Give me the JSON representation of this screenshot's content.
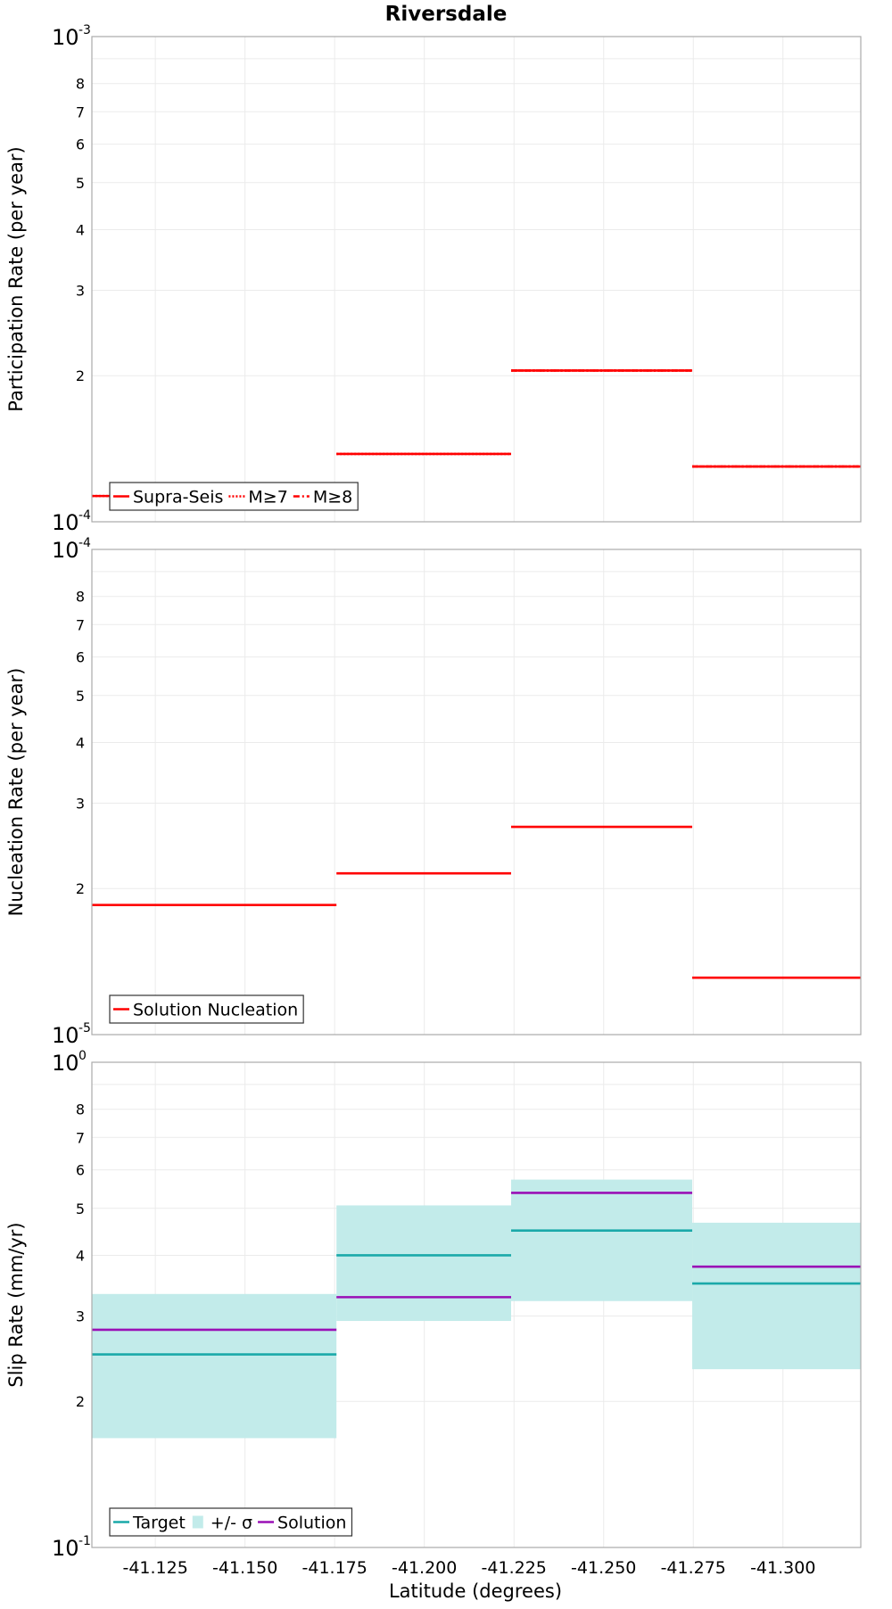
{
  "chart_data": {
    "title": "Riversdale",
    "type": "line",
    "xlabel": "Latitude (degrees)",
    "xlim": [
      -41.1073,
      -41.3217
    ],
    "xticks": [
      -41.125,
      -41.15,
      -41.175,
      -41.2,
      -41.225,
      -41.25,
      -41.275,
      -41.3
    ],
    "xtick_labels": [
      "-41.125",
      "-41.150",
      "-41.175",
      "-41.200",
      "-41.225",
      "-41.250",
      "-41.275",
      "-41.300"
    ],
    "grid": true,
    "subplots": [
      {
        "ylabel": "Participation Rate (per year)",
        "yscale": "log",
        "ylim": [
          0.0001,
          0.001
        ],
        "y_major_labels": [
          {
            "base": "10",
            "exp": "-3"
          },
          {
            "base": "10",
            "exp": "-4"
          }
        ],
        "y_minor_labels": [
          "8",
          "7",
          "6",
          "5",
          "4",
          "3",
          "2"
        ],
        "legend": {
          "position": "bottom-left",
          "entries": [
            "Supra-Seis",
            "M≥7",
            "M≥8"
          ]
        },
        "series": [
          {
            "name": "Supra-Seis",
            "style": "solid",
            "color": "#ff0000",
            "segments": [
              {
                "x0": -41.1073,
                "x1": -41.1755,
                "y": 0.000113
              },
              {
                "x0": -41.1755,
                "x1": -41.2242,
                "y": 0.000138
              },
              {
                "x0": -41.2242,
                "x1": -41.2747,
                "y": 0.000205
              },
              {
                "x0": -41.2747,
                "x1": -41.3217,
                "y": 0.00013
              }
            ]
          },
          {
            "name": "M≥7",
            "style": "dotted",
            "color": "#ff0000",
            "segments": [
              {
                "x0": -41.1073,
                "x1": -41.1755,
                "y": 0.000113
              },
              {
                "x0": -41.1755,
                "x1": -41.2242,
                "y": 0.000138
              },
              {
                "x0": -41.2242,
                "x1": -41.2747,
                "y": 0.000205
              },
              {
                "x0": -41.2747,
                "x1": -41.3217,
                "y": 0.00013
              }
            ]
          },
          {
            "name": "M≥8",
            "style": "dashdot",
            "color": "#ff0000",
            "segments": [
              {
                "x0": -41.2242,
                "x1": -41.2747,
                "y": 0.000205
              },
              {
                "x0": -41.2747,
                "x1": -41.3217,
                "y": 0.00013
              }
            ]
          }
        ]
      },
      {
        "ylabel": "Nucleation Rate (per year)",
        "yscale": "log",
        "ylim": [
          1e-05,
          0.0001
        ],
        "y_major_labels": [
          {
            "base": "10",
            "exp": "-4"
          },
          {
            "base": "10",
            "exp": "-5"
          }
        ],
        "y_minor_labels": [
          "8",
          "7",
          "6",
          "5",
          "4",
          "3",
          "2"
        ],
        "legend": {
          "position": "bottom-left",
          "entries": [
            "Solution Nucleation"
          ]
        },
        "series": [
          {
            "name": "Solution Nucleation",
            "style": "solid",
            "color": "#ff0000",
            "segments": [
              {
                "x0": -41.1073,
                "x1": -41.1755,
                "y": 1.85e-05
              },
              {
                "x0": -41.1755,
                "x1": -41.2242,
                "y": 2.15e-05
              },
              {
                "x0": -41.2242,
                "x1": -41.2747,
                "y": 2.68e-05
              },
              {
                "x0": -41.2747,
                "x1": -41.3217,
                "y": 1.31e-05
              }
            ]
          }
        ]
      },
      {
        "ylabel": "Slip Rate (mm/yr)",
        "yscale": "log",
        "ylim": [
          0.1,
          1
        ],
        "y_major_labels": [
          {
            "base": "10",
            "exp": "0"
          },
          {
            "base": "10",
            "exp": "-1"
          }
        ],
        "y_minor_labels": [
          "8",
          "7",
          "6",
          "5",
          "4",
          "3",
          "2"
        ],
        "legend": {
          "position": "bottom-left",
          "entries": [
            "Target",
            "+/- σ",
            "Solution"
          ]
        },
        "bands": [
          {
            "name": "+/- σ",
            "color": "#c2ebea",
            "segments": [
              {
                "x0": -41.1073,
                "x1": -41.1755,
                "low": 0.168,
                "high": 0.333
              },
              {
                "x0": -41.1755,
                "x1": -41.2242,
                "low": 0.293,
                "high": 0.507
              },
              {
                "x0": -41.2242,
                "x1": -41.2747,
                "low": 0.322,
                "high": 0.573
              },
              {
                "x0": -41.2747,
                "x1": -41.3217,
                "low": 0.233,
                "high": 0.467
              }
            ]
          }
        ],
        "series": [
          {
            "name": "Target",
            "style": "solid",
            "color": "#1aa9a9",
            "segments": [
              {
                "x0": -41.1073,
                "x1": -41.1755,
                "y": 0.25
              },
              {
                "x0": -41.1755,
                "x1": -41.2242,
                "y": 0.4
              },
              {
                "x0": -41.2242,
                "x1": -41.2747,
                "y": 0.45
              },
              {
                "x0": -41.2747,
                "x1": -41.3217,
                "y": 0.35
              }
            ]
          },
          {
            "name": "Solution",
            "style": "solid",
            "color": "#9a10b6",
            "segments": [
              {
                "x0": -41.1073,
                "x1": -41.1755,
                "y": 0.281
              },
              {
                "x0": -41.1755,
                "x1": -41.2242,
                "y": 0.328
              },
              {
                "x0": -41.2242,
                "x1": -41.2747,
                "y": 0.538
              },
              {
                "x0": -41.2747,
                "x1": -41.3217,
                "y": 0.379
              }
            ]
          }
        ]
      }
    ]
  }
}
